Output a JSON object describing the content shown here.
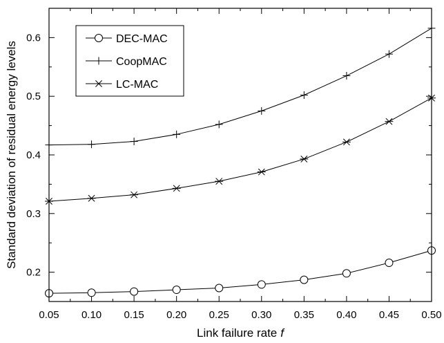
{
  "chart_data": {
    "type": "line",
    "xlabel": "Link failure rate",
    "xlabel_var": "f",
    "ylabel": "Standard deviation of residual energy levels",
    "x": [
      0.05,
      0.1,
      0.15,
      0.2,
      0.25,
      0.3,
      0.35,
      0.4,
      0.45,
      0.5
    ],
    "x_tick_labels": [
      "0.05",
      "0.10",
      "0.15",
      "0.20",
      "0.25",
      "0.30",
      "0.35",
      "0.40",
      "0.45",
      "0.50"
    ],
    "y_ticks": [
      0.2,
      0.3,
      0.4,
      0.5,
      0.6
    ],
    "y_tick_labels": [
      "0.2",
      "0.3",
      "0.4",
      "0.5",
      "0.6"
    ],
    "xlim": [
      0.05,
      0.5
    ],
    "ylim": [
      0.15,
      0.65
    ],
    "grid": false,
    "legend_position": "top-left",
    "series": [
      {
        "name": "DEC-MAC",
        "marker": "circle",
        "values": [
          0.164,
          0.165,
          0.167,
          0.17,
          0.173,
          0.179,
          0.187,
          0.198,
          0.216,
          0.237
        ]
      },
      {
        "name": "CoopMAC",
        "marker": "plus",
        "values": [
          0.417,
          0.418,
          0.423,
          0.435,
          0.452,
          0.475,
          0.502,
          0.535,
          0.572,
          0.616
        ]
      },
      {
        "name": "LC-MAC",
        "marker": "asterisk",
        "values": [
          0.321,
          0.326,
          0.332,
          0.343,
          0.355,
          0.371,
          0.393,
          0.422,
          0.457,
          0.497
        ]
      }
    ]
  }
}
